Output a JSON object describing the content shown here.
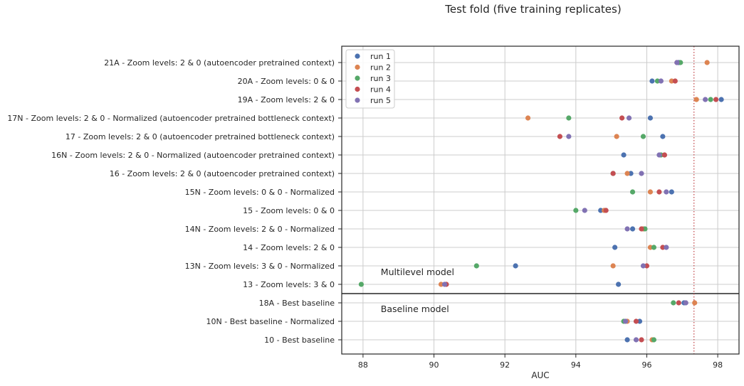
{
  "chart_data": {
    "type": "scatter",
    "title": "Test fold (five training replicates)",
    "xlabel": "AUC",
    "ylabel": "",
    "xlim": [
      87.4,
      98.6
    ],
    "xticks": [
      88,
      90,
      92,
      94,
      96,
      98
    ],
    "grid": true,
    "legend_position": "top-left",
    "reference_line": {
      "x": 97.33,
      "style": "dotted",
      "color": "#c44e52"
    },
    "section_divider_after": "13 - Zoom levels: 3 & 0",
    "annotations": [
      {
        "text": "Multilevel model",
        "x": 88.5,
        "row": 11.35
      },
      {
        "text": "Baseline model",
        "x": 88.5,
        "row": 13.35
      }
    ],
    "categories": [
      "21A - Zoom levels: 2 & 0 (autoencoder pretrained context)",
      "20A - Zoom levels: 0 & 0",
      "19A - Zoom levels: 2 & 0",
      "17N - Zoom levels: 2 & 0 - Normalized (autoencoder pretrained bottleneck context)",
      "17 - Zoom levels: 2 & 0 (autoencoder pretrained bottleneck context)",
      "16N - Zoom levels: 2 & 0 - Normalized (autoencoder pretrained context)",
      "16 - Zoom levels: 2 & 0 (autoencoder pretrained context)",
      "15N - Zoom levels: 0 & 0 - Normalized",
      "15 - Zoom levels: 0 & 0",
      "14N - Zoom levels: 2 & 0 - Normalized",
      "14 - Zoom levels: 2 & 0",
      "13N - Zoom levels: 3 & 0 - Normalized",
      "13 - Zoom levels: 3 & 0",
      "18A - Best baseline",
      "10N - Best baseline - Normalized",
      "10 - Best baseline"
    ],
    "series": [
      {
        "name": "run 1",
        "color": "#4c72b0",
        "values": [
          96.9,
          96.15,
          98.1,
          96.1,
          96.45,
          95.35,
          95.55,
          96.7,
          94.7,
          95.6,
          95.1,
          92.3,
          95.2,
          97.05,
          95.8,
          95.45
        ]
      },
      {
        "name": "run 2",
        "color": "#dd8452",
        "values": [
          97.7,
          96.7,
          97.4,
          92.65,
          95.15,
          96.5,
          95.45,
          96.1,
          94.8,
          95.9,
          96.1,
          95.05,
          90.2,
          97.35,
          95.45,
          96.15
        ]
      },
      {
        "name": "run 3",
        "color": "#55a868",
        "values": [
          96.95,
          96.3,
          97.8,
          93.8,
          95.9,
          96.4,
          95.05,
          95.6,
          94.0,
          95.95,
          96.2,
          91.2,
          87.95,
          96.75,
          95.35,
          96.2
        ]
      },
      {
        "name": "run 4",
        "color": "#c44e52",
        "values": [
          96.85,
          96.8,
          97.95,
          95.3,
          93.55,
          96.5,
          95.05,
          96.35,
          94.85,
          95.85,
          96.45,
          96.0,
          90.35,
          96.9,
          95.7,
          95.85
        ]
      },
      {
        "name": "run 5",
        "color": "#8172b3",
        "values": [
          96.85,
          96.4,
          97.65,
          95.5,
          93.8,
          96.35,
          95.85,
          96.55,
          94.25,
          95.45,
          96.55,
          95.9,
          90.3,
          97.1,
          95.4,
          95.7
        ]
      }
    ]
  }
}
